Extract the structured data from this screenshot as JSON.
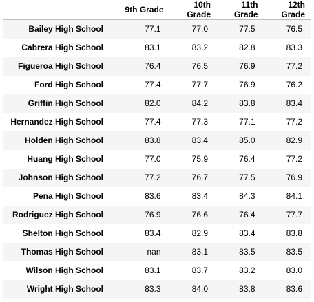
{
  "table": {
    "columns": [
      "",
      "9th Grade",
      "10th Grade",
      "11th Grade",
      "12th Grade"
    ],
    "rows": [
      {
        "school": "Bailey High School",
        "values": [
          "77.1",
          "77.0",
          "77.5",
          "76.5"
        ]
      },
      {
        "school": "Cabrera High School",
        "values": [
          "83.1",
          "83.2",
          "82.8",
          "83.3"
        ]
      },
      {
        "school": "Figueroa High School",
        "values": [
          "76.4",
          "76.5",
          "76.9",
          "77.2"
        ]
      },
      {
        "school": "Ford High School",
        "values": [
          "77.4",
          "77.7",
          "76.9",
          "76.2"
        ]
      },
      {
        "school": "Griffin High School",
        "values": [
          "82.0",
          "84.2",
          "83.8",
          "83.4"
        ]
      },
      {
        "school": "Hernandez High School",
        "values": [
          "77.4",
          "77.3",
          "77.1",
          "77.2"
        ]
      },
      {
        "school": "Holden High School",
        "values": [
          "83.8",
          "83.4",
          "85.0",
          "82.9"
        ]
      },
      {
        "school": "Huang High School",
        "values": [
          "77.0",
          "75.9",
          "76.4",
          "77.2"
        ]
      },
      {
        "school": "Johnson High School",
        "values": [
          "77.2",
          "76.7",
          "77.5",
          "76.9"
        ]
      },
      {
        "school": "Pena High School",
        "values": [
          "83.6",
          "83.4",
          "84.3",
          "84.1"
        ]
      },
      {
        "school": "Rodriguez High School",
        "values": [
          "76.9",
          "76.6",
          "76.4",
          "77.7"
        ]
      },
      {
        "school": "Shelton High School",
        "values": [
          "83.4",
          "82.9",
          "83.4",
          "83.8"
        ]
      },
      {
        "school": "Thomas High School",
        "values": [
          "nan",
          "83.1",
          "83.5",
          "83.5"
        ]
      },
      {
        "school": "Wilson High School",
        "values": [
          "83.1",
          "83.7",
          "83.2",
          "83.0"
        ]
      },
      {
        "school": "Wright High School",
        "values": [
          "83.3",
          "84.0",
          "83.8",
          "83.6"
        ]
      }
    ]
  }
}
